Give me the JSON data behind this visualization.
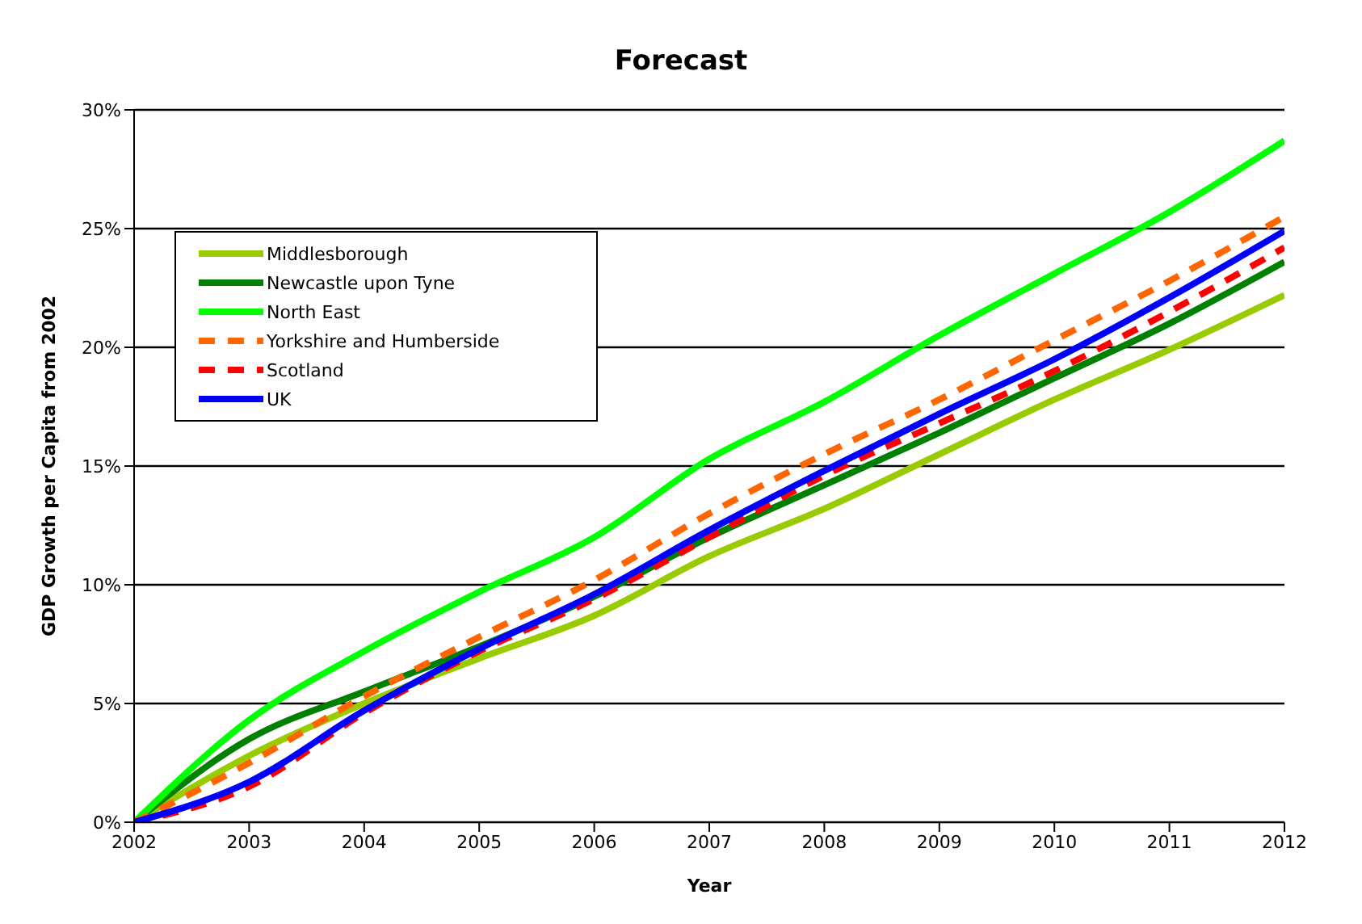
{
  "chart_data": {
    "type": "line",
    "title": "Forecast",
    "xlabel": "Year",
    "ylabel": "GDP Growth per Capita from 2002",
    "x": [
      2002,
      2003,
      2004,
      2005,
      2006,
      2007,
      2008,
      2009,
      2010,
      2011,
      2012
    ],
    "xlim": [
      2002,
      2012
    ],
    "xticks": [
      2002,
      2003,
      2004,
      2005,
      2006,
      2007,
      2008,
      2009,
      2010,
      2011,
      2012
    ],
    "ylim": [
      0,
      30
    ],
    "yticks": [
      {
        "value": 0,
        "label": "0%"
      },
      {
        "value": 5,
        "label": "5%"
      },
      {
        "value": 10,
        "label": "10%"
      },
      {
        "value": 15,
        "label": "15%"
      },
      {
        "value": 20,
        "label": "20%"
      },
      {
        "value": 25,
        "label": "25%"
      },
      {
        "value": 30,
        "label": "30%"
      }
    ],
    "grid": "y",
    "legend": "top left",
    "marker": "none",
    "line_style": "solid",
    "series": [
      {
        "name": "Middlesborough",
        "color": "#99cc00",
        "values": [
          0,
          2.8,
          5.0,
          6.9,
          8.7,
          11.2,
          13.2,
          15.5,
          17.8,
          19.9,
          22.2
        ]
      },
      {
        "name": "Newcastle upon Tyne",
        "color": "#008000",
        "values": [
          0,
          3.5,
          5.5,
          7.4,
          9.5,
          12.0,
          14.2,
          16.4,
          18.7,
          21.0,
          23.6
        ]
      },
      {
        "name": "North East",
        "color": "#00ff00",
        "values": [
          0,
          4.3,
          7.2,
          9.7,
          12.0,
          15.3,
          17.7,
          20.5,
          23.1,
          25.7,
          28.7
        ]
      },
      {
        "name": "Yorkshire and Humberside",
        "color": "#ff6600",
        "line_style": "dashed",
        "values": [
          0,
          2.5,
          5.3,
          7.8,
          10.2,
          13.0,
          15.5,
          17.8,
          20.3,
          22.8,
          25.5
        ]
      },
      {
        "name": "Scotland",
        "color": "#ff0000",
        "line_style": "dashed",
        "values": [
          0,
          1.5,
          4.6,
          7.2,
          9.4,
          12.0,
          14.6,
          16.8,
          19.0,
          21.5,
          24.2
        ]
      },
      {
        "name": "UK",
        "color": "#0000ff",
        "values": [
          0,
          1.7,
          4.7,
          7.3,
          9.6,
          12.3,
          14.8,
          17.2,
          19.5,
          22.1,
          24.9
        ]
      }
    ]
  }
}
